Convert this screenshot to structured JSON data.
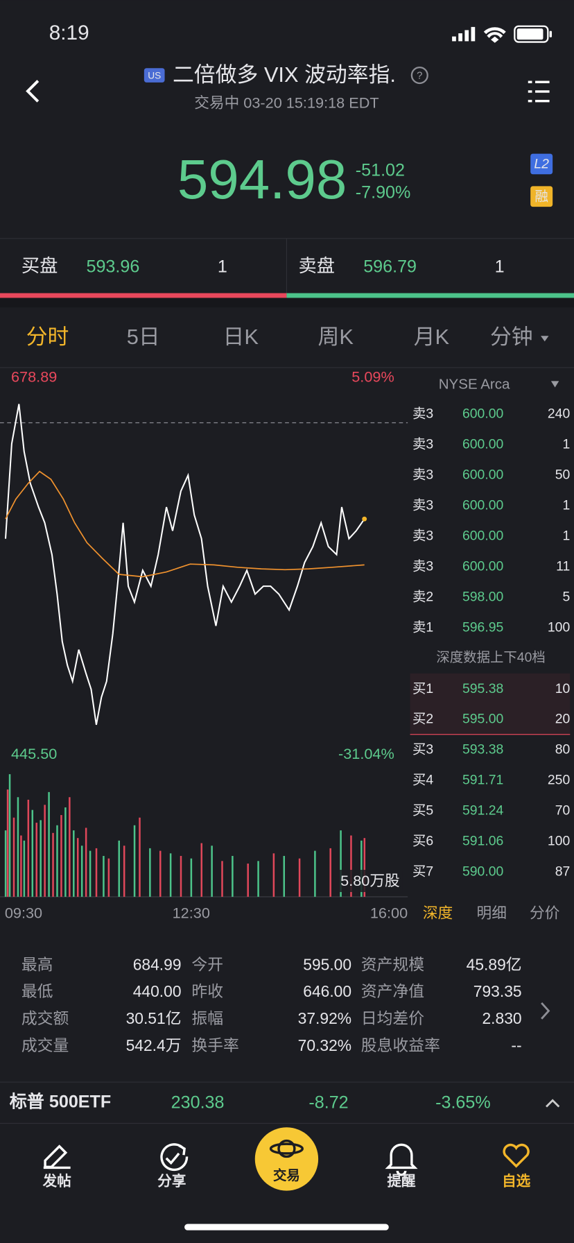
{
  "status_bar": {
    "time": "8:19"
  },
  "header": {
    "market_badge": "US",
    "title": "二倍做多 VIX 波动率指.",
    "status": "交易中 03-20 15:19:18 EDT"
  },
  "quote": {
    "price": "594.98",
    "change": "-51.02",
    "change_pct": "-7.90%",
    "badge_l2": "L2",
    "badge_margin": "融"
  },
  "bid_ask": {
    "bid_label": "买盘",
    "bid_price": "593.96",
    "bid_size": "1",
    "ask_label": "卖盘",
    "ask_price": "596.79",
    "ask_size": "1"
  },
  "tabs": [
    "分时",
    "5日",
    "日K",
    "周K",
    "月K",
    "分钟"
  ],
  "chart_data": [
    {
      "type": "line",
      "xlim": [
        0,
        390
      ],
      "xticks": [
        {
          "value": 0,
          "label": "09:30"
        },
        {
          "value": 180,
          "label": "12:30"
        },
        {
          "value": 390,
          "label": "16:00"
        }
      ],
      "ylim": [
        445.5,
        678.89
      ],
      "yticks": [
        678.89,
        {
          "value": 445.5,
          "label": "445.50"
        }
      ],
      "y2lim": [
        -31.04,
        5.09
      ],
      "y2ticks": [
        {
          "value": 5.09,
          "label": "5.09%"
        },
        {
          "value": -31.04,
          "label": "-31.04%"
        }
      ],
      "series": [
        {
          "color": "#ffffff",
          "x": [
            0,
            6,
            13,
            18,
            24,
            32,
            38,
            45,
            50,
            55,
            60,
            65,
            71,
            78,
            83,
            88,
            93,
            98,
            104,
            110,
            114,
            119,
            125,
            133,
            141,
            148,
            156,
            162,
            170,
            177,
            183,
            190,
            196,
            204,
            211,
            219,
            227,
            234,
            242,
            250,
            257,
            265,
            275,
            283,
            290,
            298,
            306,
            313,
            321,
            326,
            333,
            340,
            348
          ],
          "values": [
            573.8,
            633.0,
            657.7,
            628.1,
            608.3,
            593.5,
            583.7,
            563.9,
            539.3,
            509.7,
            494.9,
            485.0,
            504.7,
            489.9,
            480.0,
            457.9,
            475.1,
            485.0,
            514.6,
            554.1,
            583.7,
            544.2,
            534.3,
            554.1,
            544.2,
            563.9,
            593.5,
            578.7,
            603.4,
            613.3,
            588.6,
            573.8,
            544.2,
            519.5,
            544.2,
            534.3,
            544.2,
            554.1,
            539.3,
            544.2,
            544.2,
            539.3,
            529.4,
            544.2,
            559.0,
            568.9,
            583.7,
            568.9,
            563.9,
            593.5,
            573.8,
            578.7,
            586.1
          ]
        },
        {
          "color": "#f0922e",
          "x": [
            0,
            10,
            22,
            33,
            44,
            56,
            67,
            79,
            94,
            110,
            133,
            156,
            179,
            202,
            225,
            248,
            271,
            294,
            317,
            348
          ],
          "values": [
            586.1,
            598.5,
            608.3,
            615.7,
            610.8,
            598.5,
            583.7,
            571.3,
            561.5,
            551.6,
            550.1,
            553.1,
            558.0,
            557.5,
            556.0,
            555.0,
            554.5,
            555.0,
            556.0,
            557.5
          ]
        }
      ]
    },
    {
      "type": "bar",
      "xlim": [
        0,
        390
      ],
      "ylim": [
        0,
        5.8
      ],
      "yticks": [
        {
          "value": 5.8,
          "label": "5.80万股"
        }
      ],
      "series": [
        {
          "color": "#4cc38a",
          "x": [
            0,
            4,
            12,
            18,
            26,
            34,
            42,
            50,
            58,
            66,
            74,
            82,
            95,
            110,
            125,
            140,
            160,
            180,
            200,
            220,
            245,
            270,
            300,
            325,
            345
          ],
          "values": [
            2.6,
            4.8,
            3.9,
            2.2,
            3.4,
            3.0,
            4.1,
            2.8,
            3.5,
            2.6,
            2.0,
            1.8,
            1.6,
            2.2,
            2.8,
            1.9,
            1.7,
            1.5,
            2.0,
            1.6,
            1.4,
            1.6,
            1.8,
            2.6,
            2.2
          ]
        },
        {
          "color": "#e0475a",
          "x": [
            2,
            8,
            15,
            22,
            30,
            38,
            46,
            54,
            62,
            70,
            78,
            88,
            100,
            115,
            130,
            150,
            170,
            190,
            210,
            235,
            260,
            285,
            315,
            335,
            348
          ],
          "values": [
            4.2,
            3.1,
            2.4,
            3.8,
            2.9,
            3.6,
            2.5,
            3.2,
            3.9,
            2.3,
            2.7,
            1.9,
            1.5,
            2.0,
            3.1,
            1.8,
            1.6,
            2.1,
            1.4,
            1.3,
            1.7,
            1.5,
            1.9,
            2.4,
            2.3
          ]
        }
      ]
    }
  ],
  "order_book": {
    "exchange": "NYSE Arca",
    "asks": [
      [
        "卖3",
        "600.00",
        "240"
      ],
      [
        "卖3",
        "600.00",
        "1"
      ],
      [
        "卖3",
        "600.00",
        "50"
      ],
      [
        "卖3",
        "600.00",
        "1"
      ],
      [
        "卖3",
        "600.00",
        "1"
      ],
      [
        "卖3",
        "600.00",
        "11"
      ],
      [
        "卖2",
        "598.00",
        "5"
      ],
      [
        "卖1",
        "596.95",
        "100"
      ]
    ],
    "depth_note": "深度数据上下40档",
    "bids": [
      [
        "买1",
        "595.38",
        "10"
      ],
      [
        "买2",
        "595.00",
        "20"
      ],
      [
        "买3",
        "593.38",
        "80"
      ],
      [
        "买4",
        "591.71",
        "250"
      ],
      [
        "买5",
        "591.24",
        "70"
      ],
      [
        "买6",
        "591.06",
        "100"
      ],
      [
        "买7",
        "590.00",
        "87"
      ]
    ],
    "tabs": [
      "深度",
      "明细",
      "分价"
    ]
  },
  "stats": {
    "rows": [
      [
        "最高",
        "684.99",
        "今开",
        "595.00",
        "资产规模",
        "45.89亿"
      ],
      [
        "最低",
        "440.00",
        "昨收",
        "646.00",
        "资产净值",
        "793.35"
      ],
      [
        "成交额",
        "30.51亿",
        "振幅",
        "37.92%",
        "日均差价",
        "2.830"
      ],
      [
        "成交量",
        "542.4万",
        "换手率",
        "70.32%",
        "股息收益率",
        "--"
      ]
    ]
  },
  "ticker": {
    "name": "标普 500ETF",
    "price": "230.38",
    "change": "-8.72",
    "change_pct": "-3.65%"
  },
  "nav": [
    "发帖",
    "分享",
    "交易",
    "提醒",
    "自选"
  ]
}
